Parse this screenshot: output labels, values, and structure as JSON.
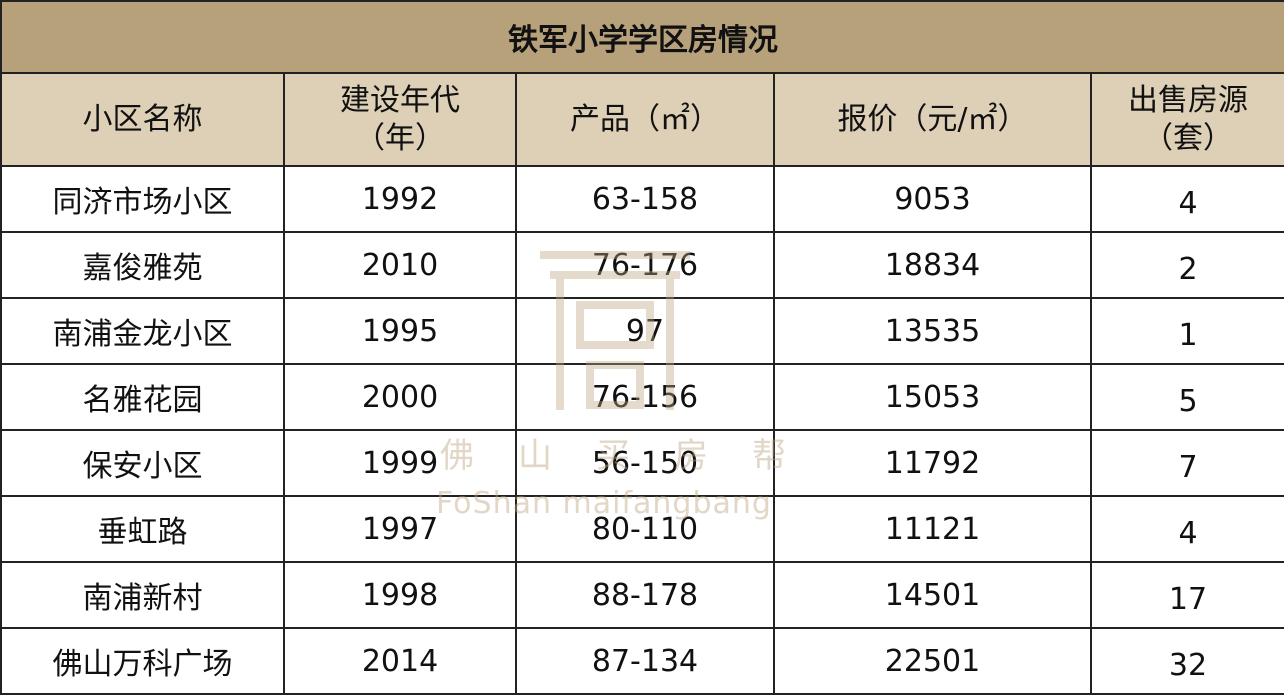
{
  "table": {
    "title": "铁军小学学区房情况",
    "header": [
      "小区名称",
      "建设年代\n（年）",
      "产品（㎡）",
      "报价（元/㎡）",
      "出售房源\n（套）"
    ],
    "rows": [
      [
        "同济市场小区",
        "1992",
        "63-158",
        "9053",
        "4"
      ],
      [
        "嘉俊雅苑",
        "2010",
        "76-176",
        "18834",
        "2"
      ],
      [
        "南浦金龙小区",
        "1995",
        "97",
        "13535",
        "1"
      ],
      [
        "名雅花园",
        "2000",
        "76-156",
        "15053",
        "5"
      ],
      [
        "保安小区",
        "1999",
        "56-150",
        "11792",
        "7"
      ],
      [
        "垂虹路",
        "1997",
        "80-110",
        "11121",
        "4"
      ],
      [
        "南浦新村",
        "1998",
        "88-178",
        "14501",
        "17"
      ],
      [
        "佛山万科广场",
        "2014",
        "87-134",
        "22501",
        "32"
      ]
    ]
  },
  "watermark": {
    "chinese": "佛山买房帮",
    "english": "FoShan maifangbang"
  }
}
